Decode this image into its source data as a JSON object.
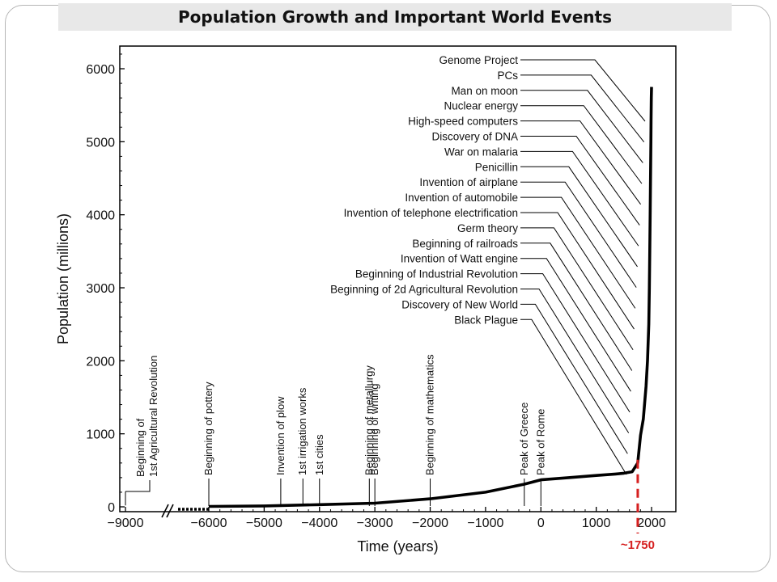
{
  "page": {
    "title": "Population Growth and Important World Events",
    "callout_label": "~1750",
    "accent_color": "#d62020"
  },
  "chart_data": {
    "type": "line",
    "title": "Population Growth and Important World Events",
    "xlabel": "Time (years)",
    "ylabel": "Population (millions)",
    "xlim": [
      -9000,
      2000
    ],
    "ylim": [
      0,
      6000
    ],
    "x_ticks": [
      -9000,
      -6000,
      -5000,
      -4000,
      -3000,
      -2000,
      -1000,
      0,
      1000,
      2000
    ],
    "x_tick_labels": [
      "−9000",
      "−6000",
      "−5000",
      "−4000",
      "−3000",
      "−2000",
      "−1000",
      "0",
      "1000",
      "2000"
    ],
    "y_ticks": [
      0,
      1000,
      2000,
      3000,
      4000,
      5000,
      6000
    ],
    "axis_break_between": [
      -9000,
      -6000
    ],
    "series": [
      {
        "x": [
          -6000,
          -5000,
          -4000,
          -3000,
          -2000,
          -1000,
          -300,
          0,
          500,
          1000,
          1350,
          1500,
          1650,
          1750,
          1800,
          1850,
          1900,
          1927,
          1950,
          1960,
          1970,
          1975,
          1980,
          1987,
          1990,
          1995,
          2000
        ],
        "y": [
          5,
          12,
          30,
          50,
          110,
          200,
          310,
          370,
          400,
          430,
          450,
          460,
          480,
          600,
          980,
          1200,
          1650,
          2000,
          2500,
          3000,
          3700,
          4000,
          4450,
          5000,
          5300,
          5600,
          5750
        ]
      }
    ],
    "ancient_events": [
      {
        "label": "Beginning of 1st Agricultural Revolution",
        "x": -9000
      },
      {
        "label": "Beginning of pottery",
        "x": -6000
      },
      {
        "label": "Invention of plow",
        "x": -4700
      },
      {
        "label": "1st irrigation works",
        "x": -4300
      },
      {
        "label": "1st cities",
        "x": -4000
      },
      {
        "label": "Beginning of metallurgy",
        "x": -3100
      },
      {
        "label": "Beginning of writing",
        "x": -3000
      },
      {
        "label": "Beginning of mathematics",
        "x": -2000
      },
      {
        "label": "Peak of Greece",
        "x": -300
      },
      {
        "label": "Peak of Rome",
        "x": 0
      }
    ],
    "modern_events": [
      "Genome Project",
      "PCs",
      "Man on moon",
      "Nuclear energy",
      "High-speed computers",
      "Discovery of DNA",
      "War on malaria",
      "Penicillin",
      "Invention of airplane",
      "Invention of automobile",
      "Invention of telephone electrification",
      "Germ theory",
      "Beginning of railroads",
      "Invention of Watt engine",
      "Beginning of Industrial Revolution",
      "Beginning of 2d Agricultural Revolution",
      "Discovery of New World",
      "Black Plague"
    ],
    "marker": {
      "x": 1750,
      "label": "~1750"
    }
  }
}
